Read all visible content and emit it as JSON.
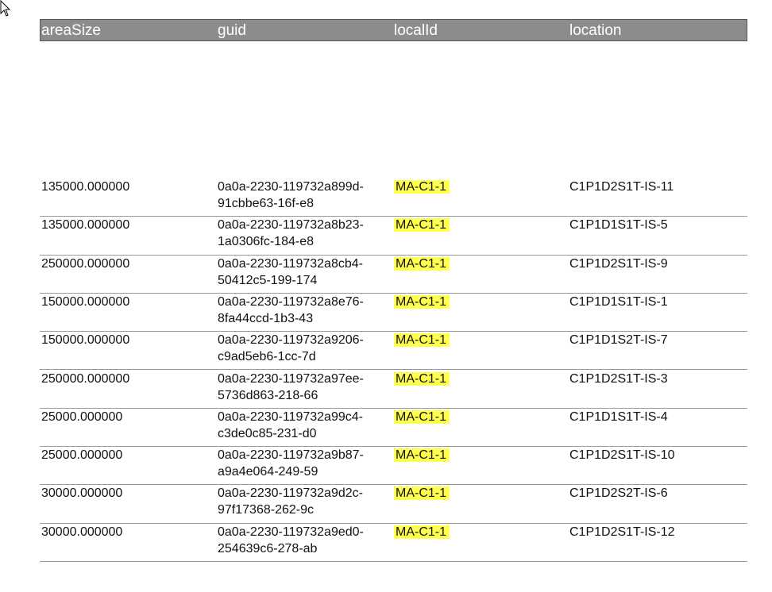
{
  "table": {
    "header": [
      "areaSize",
      "guid",
      "localId",
      "location"
    ],
    "rows": [
      [
        "135000.000000",
        "0a0a-2230-119732a899d-91cbbe63-16f-e8",
        "MA-C1-1",
        "C1P1D2S1T-IS-11"
      ],
      [
        "135000.000000",
        "0a0a-2230-119732a8b23-1a0306fc-184-e8",
        "MA-C1-1",
        "C1P1D1S1T-IS-5"
      ],
      [
        "250000.000000",
        "0a0a-2230-119732a8cb4-50412c5-199-174",
        "MA-C1-1",
        "C1P1D2S1T-IS-9"
      ],
      [
        "150000.000000",
        "0a0a-2230-119732a8e76-8fa44ccd-1b3-43",
        "MA-C1-1",
        "C1P1D1S1T-IS-1"
      ],
      [
        "150000.000000",
        "0a0a-2230-119732a9206-c9ad5eb6-1cc-7d",
        "MA-C1-1",
        "C1P1D1S2T-IS-7"
      ],
      [
        "250000.000000",
        "0a0a-2230-119732a97ee-5736d863-218-66",
        "MA-C1-1",
        "C1P1D2S1T-IS-3"
      ],
      [
        "25000.000000",
        "0a0a-2230-119732a99c4-c3de0c85-231-d0",
        "MA-C1-1",
        "C1P1D1S1T-IS-4"
      ],
      [
        "25000.000000",
        "0a0a-2230-119732a9b87-a9a4e064-249-59",
        "MA-C1-1",
        "C1P1D2S1T-IS-10"
      ],
      [
        "30000.000000",
        "0a0a-2230-119732a9d2c-97f17368-262-9c",
        "MA-C1-1",
        "C1P1D2S2T-IS-6"
      ],
      [
        "30000.000000",
        "0a0a-2230-119732a9ed0-254639c6-278-ab",
        "MA-C1-1",
        "C1P1D2S1T-IS-12"
      ]
    ]
  }
}
